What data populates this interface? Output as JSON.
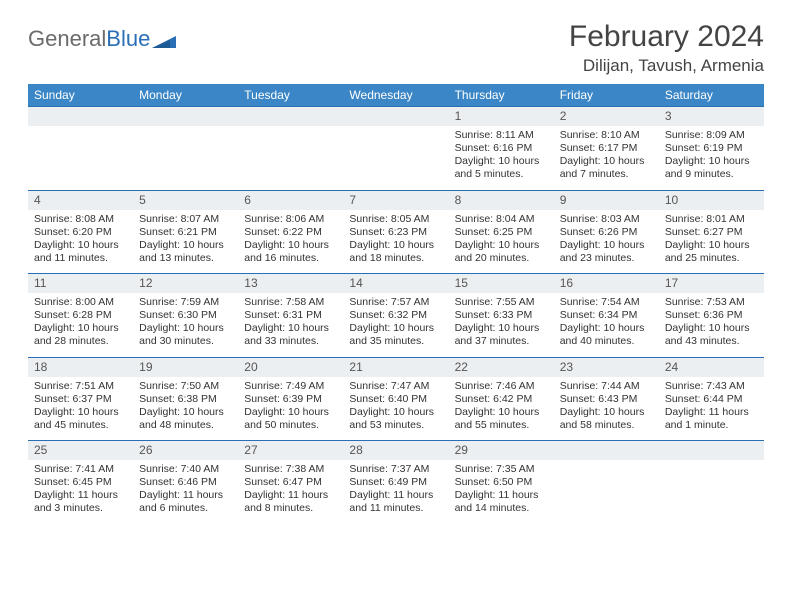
{
  "logo": {
    "text1": "General",
    "text2": "Blue"
  },
  "header": {
    "month": "February 2024",
    "location": "Dilijan, Tavush, Armenia"
  },
  "colors": {
    "header_bg": "#3b86c6",
    "daynum_bg": "#eceff1",
    "rule": "#2a6fb5",
    "logo_gray": "#6b6b6b",
    "logo_blue": "#2a6fb5"
  },
  "weekdays": [
    "Sunday",
    "Monday",
    "Tuesday",
    "Wednesday",
    "Thursday",
    "Friday",
    "Saturday"
  ],
  "weeks": [
    {
      "nums": [
        "",
        "",
        "",
        "",
        "1",
        "2",
        "3"
      ],
      "cells": [
        "",
        "",
        "",
        "",
        "Sunrise: 8:11 AM\nSunset: 6:16 PM\nDaylight: 10 hours and 5 minutes.",
        "Sunrise: 8:10 AM\nSunset: 6:17 PM\nDaylight: 10 hours and 7 minutes.",
        "Sunrise: 8:09 AM\nSunset: 6:19 PM\nDaylight: 10 hours and 9 minutes."
      ]
    },
    {
      "nums": [
        "4",
        "5",
        "6",
        "7",
        "8",
        "9",
        "10"
      ],
      "cells": [
        "Sunrise: 8:08 AM\nSunset: 6:20 PM\nDaylight: 10 hours and 11 minutes.",
        "Sunrise: 8:07 AM\nSunset: 6:21 PM\nDaylight: 10 hours and 13 minutes.",
        "Sunrise: 8:06 AM\nSunset: 6:22 PM\nDaylight: 10 hours and 16 minutes.",
        "Sunrise: 8:05 AM\nSunset: 6:23 PM\nDaylight: 10 hours and 18 minutes.",
        "Sunrise: 8:04 AM\nSunset: 6:25 PM\nDaylight: 10 hours and 20 minutes.",
        "Sunrise: 8:03 AM\nSunset: 6:26 PM\nDaylight: 10 hours and 23 minutes.",
        "Sunrise: 8:01 AM\nSunset: 6:27 PM\nDaylight: 10 hours and 25 minutes."
      ]
    },
    {
      "nums": [
        "11",
        "12",
        "13",
        "14",
        "15",
        "16",
        "17"
      ],
      "cells": [
        "Sunrise: 8:00 AM\nSunset: 6:28 PM\nDaylight: 10 hours and 28 minutes.",
        "Sunrise: 7:59 AM\nSunset: 6:30 PM\nDaylight: 10 hours and 30 minutes.",
        "Sunrise: 7:58 AM\nSunset: 6:31 PM\nDaylight: 10 hours and 33 minutes.",
        "Sunrise: 7:57 AM\nSunset: 6:32 PM\nDaylight: 10 hours and 35 minutes.",
        "Sunrise: 7:55 AM\nSunset: 6:33 PM\nDaylight: 10 hours and 37 minutes.",
        "Sunrise: 7:54 AM\nSunset: 6:34 PM\nDaylight: 10 hours and 40 minutes.",
        "Sunrise: 7:53 AM\nSunset: 6:36 PM\nDaylight: 10 hours and 43 minutes."
      ]
    },
    {
      "nums": [
        "18",
        "19",
        "20",
        "21",
        "22",
        "23",
        "24"
      ],
      "cells": [
        "Sunrise: 7:51 AM\nSunset: 6:37 PM\nDaylight: 10 hours and 45 minutes.",
        "Sunrise: 7:50 AM\nSunset: 6:38 PM\nDaylight: 10 hours and 48 minutes.",
        "Sunrise: 7:49 AM\nSunset: 6:39 PM\nDaylight: 10 hours and 50 minutes.",
        "Sunrise: 7:47 AM\nSunset: 6:40 PM\nDaylight: 10 hours and 53 minutes.",
        "Sunrise: 7:46 AM\nSunset: 6:42 PM\nDaylight: 10 hours and 55 minutes.",
        "Sunrise: 7:44 AM\nSunset: 6:43 PM\nDaylight: 10 hours and 58 minutes.",
        "Sunrise: 7:43 AM\nSunset: 6:44 PM\nDaylight: 11 hours and 1 minute."
      ]
    },
    {
      "nums": [
        "25",
        "26",
        "27",
        "28",
        "29",
        "",
        ""
      ],
      "cells": [
        "Sunrise: 7:41 AM\nSunset: 6:45 PM\nDaylight: 11 hours and 3 minutes.",
        "Sunrise: 7:40 AM\nSunset: 6:46 PM\nDaylight: 11 hours and 6 minutes.",
        "Sunrise: 7:38 AM\nSunset: 6:47 PM\nDaylight: 11 hours and 8 minutes.",
        "Sunrise: 7:37 AM\nSunset: 6:49 PM\nDaylight: 11 hours and 11 minutes.",
        "Sunrise: 7:35 AM\nSunset: 6:50 PM\nDaylight: 11 hours and 14 minutes.",
        "",
        ""
      ]
    }
  ]
}
